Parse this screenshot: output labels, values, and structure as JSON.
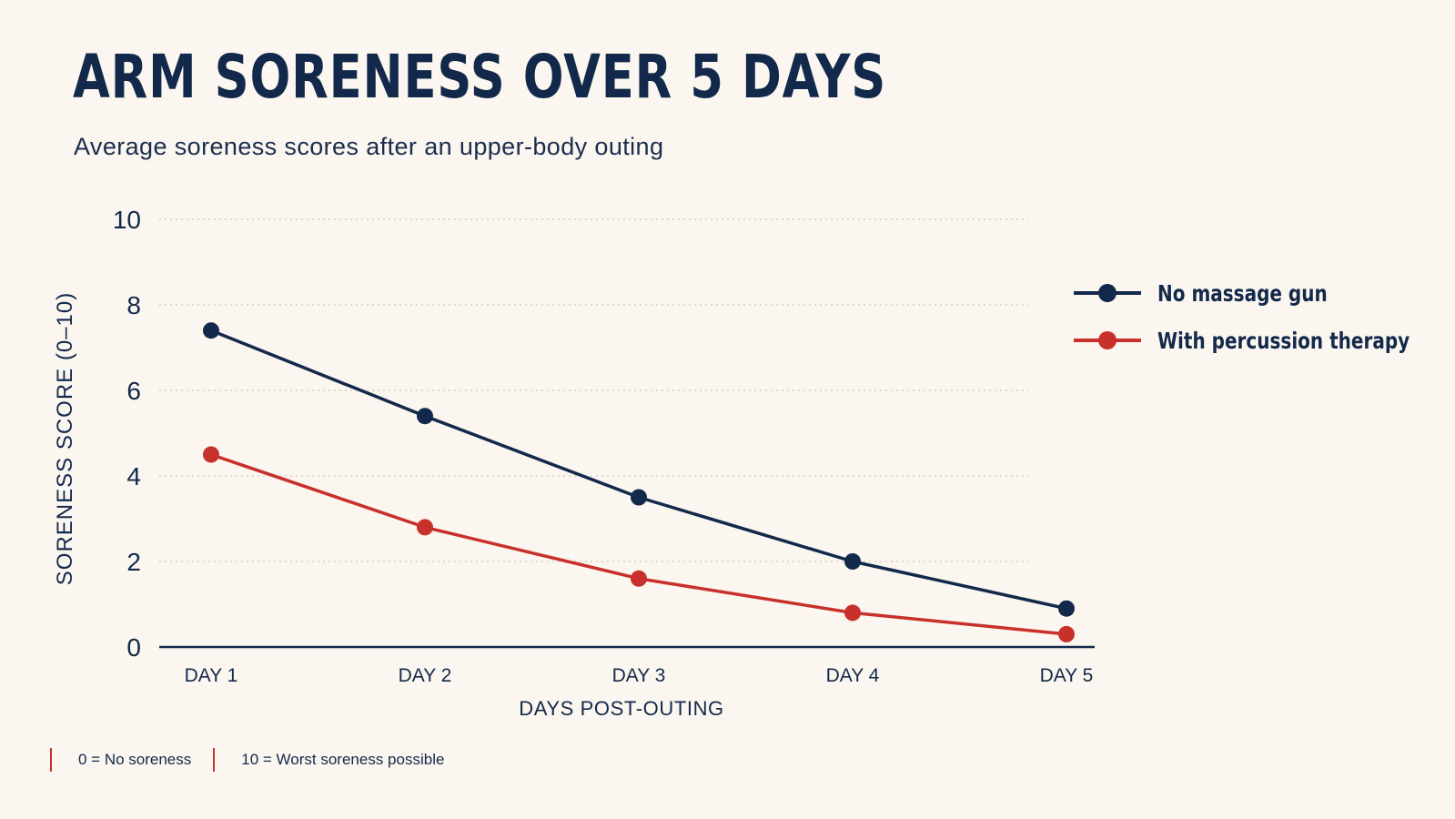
{
  "header": {
    "title": "ARM SORENESS OVER 5 DAYS",
    "subtitle": "Average soreness scores after an upper-body outing"
  },
  "colors": {
    "navy": "#13294b",
    "red": "#c8312b",
    "background": "#fbf6ef",
    "grid": "#c9c6c0"
  },
  "chart_data": {
    "type": "line",
    "title": "ARM SORENESS OVER 5 DAYS",
    "subtitle": "Average soreness scores after an upper-body outing",
    "xlabel": "DAYS POST-OUTING",
    "ylabel": "SORENESS SCORE (0–10)",
    "categories": [
      "DAY 1",
      "DAY 2",
      "DAY 3",
      "DAY 4",
      "DAY 5"
    ],
    "ylim": [
      0,
      10
    ],
    "yticks": [
      0,
      2,
      4,
      6,
      8,
      10
    ],
    "grid": "horizontal dotted",
    "legend_position": "right",
    "series": [
      {
        "name": "No massage gun",
        "color": "#13294b",
        "values": [
          7.4,
          5.4,
          3.5,
          2.0,
          0.9
        ]
      },
      {
        "name": "With percussion therapy",
        "color": "#c8312b",
        "values": [
          4.5,
          2.8,
          1.6,
          0.8,
          0.3
        ]
      }
    ]
  },
  "footnotes": [
    {
      "text": "0  =  No soreness"
    },
    {
      "text": "10  =  Worst soreness possible"
    }
  ]
}
